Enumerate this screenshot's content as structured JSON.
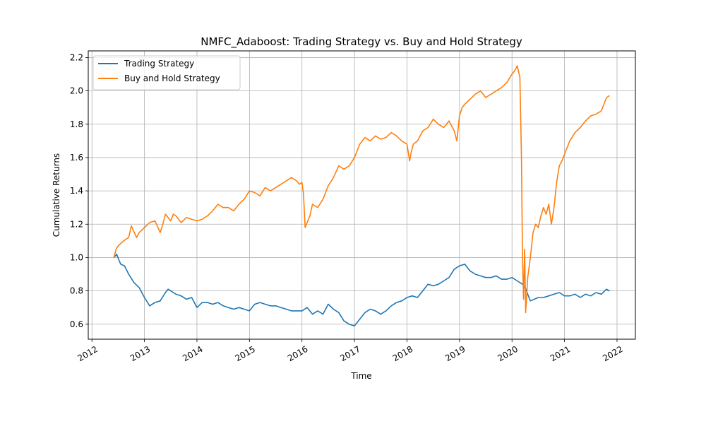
{
  "chart_data": {
    "type": "line",
    "title": "NMFC_Adaboost: Trading Strategy vs. Buy and Hold Strategy",
    "xlabel": "Time",
    "ylabel": "Cumulative Returns",
    "xlim": [
      2011.93,
      2022.35
    ],
    "ylim": [
      0.51,
      2.24
    ],
    "x_ticks": [
      2012,
      2013,
      2014,
      2015,
      2016,
      2017,
      2018,
      2019,
      2020,
      2021,
      2022
    ],
    "x_tick_labels": [
      "2012",
      "2013",
      "2014",
      "2015",
      "2016",
      "2017",
      "2018",
      "2019",
      "2020",
      "2021",
      "2022"
    ],
    "y_ticks": [
      0.6,
      0.8,
      1.0,
      1.2,
      1.4,
      1.6,
      1.8,
      2.0,
      2.2
    ],
    "y_tick_labels": [
      "0.6",
      "0.8",
      "1.0",
      "1.2",
      "1.4",
      "1.6",
      "1.8",
      "2.0",
      "2.2"
    ],
    "grid": true,
    "legend_position": "upper-left",
    "series": [
      {
        "name": "Trading Strategy",
        "color": "#1f77b4",
        "x": [
          2012.42,
          2012.47,
          2012.52,
          2012.55,
          2012.62,
          2012.7,
          2012.8,
          2012.9,
          2013.0,
          2013.1,
          2013.2,
          2013.3,
          2013.4,
          2013.45,
          2013.5,
          2013.6,
          2013.7,
          2013.8,
          2013.9,
          2014.0,
          2014.1,
          2014.2,
          2014.3,
          2014.4,
          2014.5,
          2014.6,
          2014.7,
          2014.8,
          2014.9,
          2015.0,
          2015.1,
          2015.2,
          2015.3,
          2015.4,
          2015.5,
          2015.6,
          2015.7,
          2015.8,
          2015.9,
          2016.0,
          2016.1,
          2016.2,
          2016.3,
          2016.4,
          2016.5,
          2016.6,
          2016.7,
          2016.8,
          2016.9,
          2017.0,
          2017.1,
          2017.2,
          2017.3,
          2017.4,
          2017.5,
          2017.6,
          2017.7,
          2017.8,
          2017.9,
          2018.0,
          2018.1,
          2018.2,
          2018.3,
          2018.4,
          2018.5,
          2018.6,
          2018.7,
          2018.8,
          2018.9,
          2019.0,
          2019.1,
          2019.2,
          2019.3,
          2019.4,
          2019.5,
          2019.6,
          2019.7,
          2019.8,
          2019.9,
          2020.0,
          2020.1,
          2020.2,
          2020.25,
          2020.35,
          2020.5,
          2020.6,
          2020.7,
          2020.8,
          2020.9,
          2021.0,
          2021.1,
          2021.2,
          2021.3,
          2021.4,
          2021.5,
          2021.6,
          2021.7,
          2021.8,
          2021.85
        ],
        "values": [
          1.0,
          1.02,
          0.98,
          0.96,
          0.95,
          0.9,
          0.85,
          0.82,
          0.76,
          0.71,
          0.73,
          0.74,
          0.79,
          0.81,
          0.8,
          0.78,
          0.77,
          0.75,
          0.76,
          0.7,
          0.73,
          0.73,
          0.72,
          0.73,
          0.71,
          0.7,
          0.69,
          0.7,
          0.69,
          0.68,
          0.72,
          0.73,
          0.72,
          0.71,
          0.71,
          0.7,
          0.69,
          0.68,
          0.68,
          0.68,
          0.7,
          0.66,
          0.68,
          0.66,
          0.72,
          0.69,
          0.67,
          0.62,
          0.6,
          0.59,
          0.63,
          0.67,
          0.69,
          0.68,
          0.66,
          0.68,
          0.71,
          0.73,
          0.74,
          0.76,
          0.77,
          0.76,
          0.8,
          0.84,
          0.83,
          0.84,
          0.86,
          0.88,
          0.93,
          0.95,
          0.96,
          0.92,
          0.9,
          0.89,
          0.88,
          0.88,
          0.89,
          0.87,
          0.87,
          0.88,
          0.86,
          0.84,
          0.82,
          0.74,
          0.76,
          0.76,
          0.77,
          0.78,
          0.79,
          0.77,
          0.77,
          0.78,
          0.76,
          0.78,
          0.77,
          0.79,
          0.78,
          0.81,
          0.8
        ]
      },
      {
        "name": "Buy and Hold Strategy",
        "color": "#ff7f0e",
        "x": [
          2012.42,
          2012.46,
          2012.5,
          2012.6,
          2012.7,
          2012.75,
          2012.85,
          2012.9,
          2013.0,
          2013.1,
          2013.2,
          2013.3,
          2013.35,
          2013.4,
          2013.5,
          2013.55,
          2013.6,
          2013.7,
          2013.8,
          2013.9,
          2014.0,
          2014.1,
          2014.2,
          2014.3,
          2014.4,
          2014.5,
          2014.6,
          2014.7,
          2014.8,
          2014.9,
          2015.0,
          2015.1,
          2015.2,
          2015.3,
          2015.4,
          2015.5,
          2015.6,
          2015.7,
          2015.8,
          2015.9,
          2015.95,
          2016.0,
          2016.03,
          2016.06,
          2016.15,
          2016.2,
          2016.3,
          2016.4,
          2016.5,
          2016.6,
          2016.7,
          2016.8,
          2016.9,
          2017.0,
          2017.1,
          2017.2,
          2017.3,
          2017.4,
          2017.5,
          2017.6,
          2017.7,
          2017.8,
          2017.9,
          2018.0,
          2018.05,
          2018.08,
          2018.12,
          2018.2,
          2018.3,
          2018.4,
          2018.5,
          2018.6,
          2018.7,
          2018.8,
          2018.9,
          2018.95,
          2019.0,
          2019.05,
          2019.1,
          2019.2,
          2019.3,
          2019.4,
          2019.5,
          2019.6,
          2019.7,
          2019.8,
          2019.9,
          2020.0,
          2020.05,
          2020.1,
          2020.15,
          2020.18,
          2020.2,
          2020.22,
          2020.24,
          2020.26,
          2020.3,
          2020.35,
          2020.4,
          2020.45,
          2020.5,
          2020.55,
          2020.6,
          2020.65,
          2020.7,
          2020.75,
          2020.8,
          2020.85,
          2020.9,
          2020.95,
          2021.0,
          2021.1,
          2021.2,
          2021.3,
          2021.4,
          2021.5,
          2021.6,
          2021.7,
          2021.8,
          2021.85
        ],
        "values": [
          1.0,
          1.05,
          1.07,
          1.1,
          1.12,
          1.19,
          1.12,
          1.15,
          1.18,
          1.21,
          1.22,
          1.15,
          1.2,
          1.26,
          1.22,
          1.26,
          1.25,
          1.21,
          1.24,
          1.23,
          1.22,
          1.23,
          1.25,
          1.28,
          1.32,
          1.3,
          1.3,
          1.28,
          1.32,
          1.35,
          1.4,
          1.39,
          1.37,
          1.42,
          1.4,
          1.42,
          1.44,
          1.46,
          1.48,
          1.46,
          1.44,
          1.45,
          1.38,
          1.18,
          1.25,
          1.32,
          1.3,
          1.35,
          1.43,
          1.48,
          1.55,
          1.53,
          1.55,
          1.6,
          1.68,
          1.72,
          1.7,
          1.73,
          1.71,
          1.72,
          1.75,
          1.73,
          1.7,
          1.68,
          1.58,
          1.63,
          1.68,
          1.7,
          1.76,
          1.78,
          1.83,
          1.8,
          1.78,
          1.82,
          1.76,
          1.7,
          1.85,
          1.9,
          1.92,
          1.95,
          1.98,
          2.0,
          1.96,
          1.98,
          2.0,
          2.02,
          2.05,
          2.1,
          2.12,
          2.15,
          2.08,
          1.6,
          1.0,
          0.75,
          1.05,
          0.67,
          0.88,
          1.0,
          1.15,
          1.2,
          1.18,
          1.25,
          1.3,
          1.26,
          1.32,
          1.2,
          1.3,
          1.45,
          1.55,
          1.58,
          1.62,
          1.7,
          1.75,
          1.78,
          1.82,
          1.85,
          1.86,
          1.88,
          1.96,
          1.97
        ]
      }
    ]
  }
}
